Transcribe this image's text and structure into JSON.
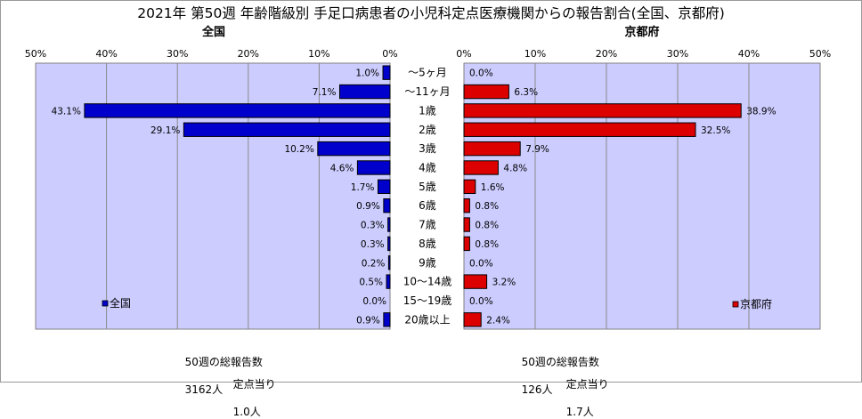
{
  "chart_data": {
    "type": "bar",
    "title": "2021年 第50週 年齢階級別 手足口病患者の小児科定点医療機関からの報告割合(全国、京都府)",
    "categories": [
      "〜5ヶ月",
      "〜11ヶ月",
      "1歳",
      "2歳",
      "3歳",
      "4歳",
      "5歳",
      "6歳",
      "7歳",
      "8歳",
      "9歳",
      "10〜14歳",
      "15〜19歳",
      "20歳以上"
    ],
    "xlim": [
      0,
      50
    ],
    "x_ticks": [
      "0%",
      "10%",
      "20%",
      "30%",
      "40%",
      "50%"
    ],
    "grid": true,
    "series": [
      {
        "name": "全国",
        "panel_title": "全国",
        "side": "left",
        "color": "#0000cc",
        "plot_bg": "#ccccff",
        "legend_label": "全国",
        "values": [
          1.0,
          7.1,
          43.1,
          29.1,
          10.2,
          4.6,
          1.7,
          0.9,
          0.3,
          0.3,
          0.2,
          0.5,
          0.0,
          0.9
        ],
        "labels": [
          "1.0%",
          "7.1%",
          "43.1%",
          "29.1%",
          "10.2%",
          "4.6%",
          "1.7%",
          "0.9%",
          "0.3%",
          "0.3%",
          "0.2%",
          "0.5%",
          "0.0%",
          "0.9%"
        ]
      },
      {
        "name": "京都府",
        "panel_title": "京都府",
        "side": "right",
        "color": "#dd0000",
        "plot_bg": "#ccccff",
        "legend_label": "京都府",
        "values": [
          0.0,
          6.3,
          38.9,
          32.5,
          7.9,
          4.8,
          1.6,
          0.8,
          0.8,
          0.8,
          0.0,
          3.2,
          0.0,
          2.4
        ],
        "labels": [
          "0.0%",
          "6.3%",
          "38.9%",
          "32.5%",
          "7.9%",
          "4.8%",
          "1.6%",
          "0.8%",
          "0.8%",
          "0.8%",
          "0.0%",
          "3.2%",
          "0.0%",
          "2.4%"
        ]
      }
    ]
  },
  "footer": {
    "national": {
      "total_label": "50週の総報告数",
      "total_value": "3162人",
      "per_label": "定点当り",
      "per_value": "1.0人"
    },
    "kyoto": {
      "total_label": "50週の総報告数",
      "total_value": "126人",
      "per_label": "定点当り",
      "per_value": "1.7人"
    }
  }
}
